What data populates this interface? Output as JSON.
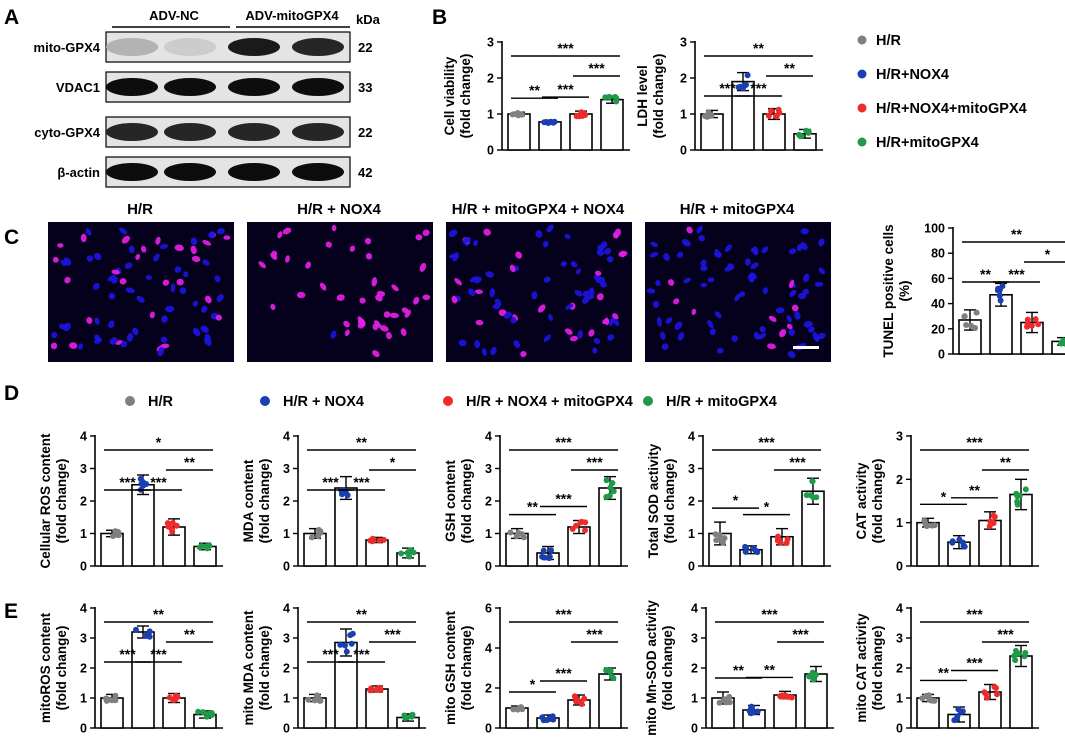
{
  "panel_labels": [
    "A",
    "B",
    "C",
    "D",
    "E"
  ],
  "panel_a": {
    "group_labels": [
      "ADV-NC",
      "ADV-mitoGPX4"
    ],
    "unit_label": "kDa",
    "rows": [
      {
        "name": "mito-GPX4",
        "kda": "22",
        "intensities": [
          0.3,
          0.2,
          0.9,
          0.85
        ]
      },
      {
        "name": "VDAC1",
        "kda": "33",
        "intensities": [
          0.95,
          0.95,
          0.95,
          0.95
        ]
      },
      {
        "name": "cyto-GPX4",
        "kda": "22",
        "intensities": [
          0.85,
          0.85,
          0.85,
          0.85
        ]
      },
      {
        "name": "β-actin",
        "kda": "42",
        "intensities": [
          0.95,
          0.95,
          0.95,
          0.95
        ]
      }
    ]
  },
  "legend_top": [
    "H/R",
    "H/R+NOX4",
    "H/R+NOX4+mitoGPX4",
    "H/R+mitoGPX4"
  ],
  "legend_mid": [
    "H/R",
    "H/R + NOX4",
    "H/R + NOX4 + mitoGPX4",
    "H/R + mitoGPX4"
  ],
  "image_titles": [
    "H/R",
    "H/R + NOX4",
    "H/R + mitoGPX4 + NOX4",
    "H/R + mitoGPX4"
  ],
  "colors": {
    "hr": "#808080",
    "nox4": "#1a3fb0",
    "nox4_mito": "#ee2b2b",
    "mito": "#1f9a4a",
    "nuclei_blue": "#1c14e0",
    "nuclei_pink": "#e61ee6",
    "image_bg": "#05001c"
  },
  "chart_data": [
    {
      "id": "cell-viability",
      "type": "bar",
      "ylabel": [
        "Cell viability",
        "(fold change)"
      ],
      "ylim": [
        0,
        3
      ],
      "yticks": [
        "0",
        "1",
        "2",
        "3"
      ],
      "values": [
        1.0,
        0.78,
        1.0,
        1.4
      ],
      "errors": [
        0.05,
        0.05,
        0.08,
        0.1
      ],
      "sig": [
        {
          "a": 0,
          "b": 3,
          "label": "***"
        },
        {
          "a": 2,
          "b": 3,
          "label": "***"
        },
        {
          "a": 1,
          "b": 2,
          "label": "***"
        },
        {
          "a": 0,
          "b": 1,
          "label": "**"
        }
      ]
    },
    {
      "id": "ldh-level",
      "type": "bar",
      "ylabel": [
        "LDH level",
        "(fold change)"
      ],
      "ylim": [
        0,
        3
      ],
      "yticks": [
        "0",
        "1",
        "2",
        "3"
      ],
      "values": [
        1.0,
        1.9,
        1.0,
        0.45
      ],
      "errors": [
        0.1,
        0.25,
        0.15,
        0.12
      ],
      "sig": [
        {
          "a": 0,
          "b": 3,
          "label": "**"
        },
        {
          "a": 0,
          "b": 1,
          "label": "***"
        },
        {
          "a": 1,
          "b": 2,
          "label": "***"
        },
        {
          "a": 2,
          "b": 3,
          "label": "**"
        }
      ]
    },
    {
      "id": "tunel-positive",
      "type": "bar",
      "ylabel": [
        "TUNEL positive cells",
        "(%)"
      ],
      "ylim": [
        0,
        100
      ],
      "yticks": [
        "0",
        "20",
        "40",
        "60",
        "80",
        "100"
      ],
      "values": [
        27,
        47,
        25,
        10
      ],
      "errors": [
        8,
        9,
        8,
        3
      ],
      "sig": [
        {
          "a": 0,
          "b": 3,
          "label": "**"
        },
        {
          "a": 0,
          "b": 1,
          "label": "**"
        },
        {
          "a": 1,
          "b": 2,
          "label": "***"
        },
        {
          "a": 2,
          "b": 3,
          "label": "*"
        }
      ]
    },
    {
      "id": "cellular-ros",
      "type": "bar",
      "ylabel": [
        "Cellular ROS content",
        "(fold change)"
      ],
      "ylim": [
        0,
        4
      ],
      "yticks": [
        "0",
        "1",
        "2",
        "3",
        "4"
      ],
      "values": [
        1.0,
        2.5,
        1.2,
        0.6
      ],
      "errors": [
        0.1,
        0.3,
        0.25,
        0.1
      ],
      "sig": [
        {
          "a": 0,
          "b": 3,
          "label": "*"
        },
        {
          "a": 0,
          "b": 1,
          "label": "***"
        },
        {
          "a": 1,
          "b": 2,
          "label": "***"
        },
        {
          "a": 2,
          "b": 3,
          "label": "**"
        }
      ]
    },
    {
      "id": "mda-content",
      "type": "bar",
      "ylabel": [
        "MDA content",
        "(fold change)"
      ],
      "ylim": [
        0,
        4
      ],
      "yticks": [
        "0",
        "1",
        "2",
        "3",
        "4"
      ],
      "values": [
        1.0,
        2.4,
        0.8,
        0.4
      ],
      "errors": [
        0.15,
        0.35,
        0.08,
        0.15
      ],
      "sig": [
        {
          "a": 0,
          "b": 3,
          "label": "**"
        },
        {
          "a": 0,
          "b": 1,
          "label": "***"
        },
        {
          "a": 1,
          "b": 2,
          "label": "***"
        },
        {
          "a": 2,
          "b": 3,
          "label": "*"
        }
      ]
    },
    {
      "id": "gsh-content",
      "type": "bar",
      "ylabel": [
        "GSH content",
        "(fold change)"
      ],
      "ylim": [
        0,
        4
      ],
      "yticks": [
        "0",
        "1",
        "2",
        "3",
        "4"
      ],
      "values": [
        1.0,
        0.4,
        1.2,
        2.4
      ],
      "errors": [
        0.15,
        0.2,
        0.2,
        0.35
      ],
      "sig": [
        {
          "a": 0,
          "b": 3,
          "label": "***"
        },
        {
          "a": 2,
          "b": 3,
          "label": "***"
        },
        {
          "a": 0,
          "b": 1,
          "label": "**"
        },
        {
          "a": 1,
          "b": 2,
          "label": "***"
        }
      ]
    },
    {
      "id": "total-sod",
      "type": "bar",
      "ylabel": [
        "Total SOD activity",
        "(fold change)"
      ],
      "ylim": [
        0,
        4
      ],
      "yticks": [
        "0",
        "1",
        "2",
        "3",
        "4"
      ],
      "values": [
        1.0,
        0.5,
        0.9,
        2.3
      ],
      "errors": [
        0.35,
        0.12,
        0.25,
        0.4
      ],
      "sig": [
        {
          "a": 0,
          "b": 3,
          "label": "***"
        },
        {
          "a": 2,
          "b": 3,
          "label": "***"
        },
        {
          "a": 0,
          "b": 1,
          "label": "*"
        },
        {
          "a": 1,
          "b": 2,
          "label": "*"
        }
      ]
    },
    {
      "id": "cat-activity",
      "type": "bar",
      "ylabel": [
        "CAT activity",
        "(fold change)"
      ],
      "ylim": [
        0,
        3
      ],
      "yticks": [
        "0",
        "1",
        "2",
        "3"
      ],
      "values": [
        1.0,
        0.55,
        1.05,
        1.65
      ],
      "errors": [
        0.1,
        0.15,
        0.2,
        0.35
      ],
      "sig": [
        {
          "a": 0,
          "b": 3,
          "label": "***"
        },
        {
          "a": 2,
          "b": 3,
          "label": "**"
        },
        {
          "a": 0,
          "b": 1,
          "label": "*"
        },
        {
          "a": 1,
          "b": 2,
          "label": "**"
        }
      ]
    },
    {
      "id": "mito-ros",
      "type": "bar",
      "ylabel": [
        "mitoROS content",
        "(fold change)"
      ],
      "ylim": [
        0,
        4
      ],
      "yticks": [
        "0",
        "1",
        "2",
        "3",
        "4"
      ],
      "values": [
        1.0,
        3.2,
        1.0,
        0.45
      ],
      "errors": [
        0.12,
        0.2,
        0.15,
        0.12
      ],
      "sig": [
        {
          "a": 0,
          "b": 3,
          "label": "**"
        },
        {
          "a": 0,
          "b": 1,
          "label": "***"
        },
        {
          "a": 1,
          "b": 2,
          "label": "***"
        },
        {
          "a": 2,
          "b": 3,
          "label": "**"
        }
      ]
    },
    {
      "id": "mito-mda",
      "type": "bar",
      "ylabel": [
        "mito MDA content",
        "(fold change)"
      ],
      "ylim": [
        0,
        4
      ],
      "yticks": [
        "0",
        "1",
        "2",
        "3",
        "4"
      ],
      "values": [
        1.0,
        2.85,
        1.3,
        0.35
      ],
      "errors": [
        0.12,
        0.45,
        0.1,
        0.12
      ],
      "sig": [
        {
          "a": 0,
          "b": 3,
          "label": "**"
        },
        {
          "a": 0,
          "b": 1,
          "label": "***"
        },
        {
          "a": 1,
          "b": 2,
          "label": "***"
        },
        {
          "a": 2,
          "b": 3,
          "label": "***"
        }
      ]
    },
    {
      "id": "mito-gsh",
      "type": "bar",
      "ylabel": [
        "mito GSH content",
        "(fold change)"
      ],
      "ylim": [
        0,
        6
      ],
      "yticks": [
        "0",
        "2",
        "4",
        "6"
      ],
      "values": [
        1.0,
        0.5,
        1.4,
        2.7
      ],
      "errors": [
        0.1,
        0.15,
        0.25,
        0.3
      ],
      "sig": [
        {
          "a": 0,
          "b": 3,
          "label": "***"
        },
        {
          "a": 2,
          "b": 3,
          "label": "***"
        },
        {
          "a": 0,
          "b": 1,
          "label": "*"
        },
        {
          "a": 1,
          "b": 2,
          "label": "***"
        }
      ]
    },
    {
      "id": "mito-mn-sod",
      "type": "bar",
      "ylabel": [
        "mito Mn-SOD activity",
        "(fold change)"
      ],
      "ylim": [
        0,
        4
      ],
      "yticks": [
        "0",
        "1",
        "2",
        "3",
        "4"
      ],
      "values": [
        1.0,
        0.6,
        1.1,
        1.8
      ],
      "errors": [
        0.2,
        0.15,
        0.12,
        0.25
      ],
      "sig": [
        {
          "a": 0,
          "b": 3,
          "label": "***"
        },
        {
          "a": 2,
          "b": 3,
          "label": "***"
        },
        {
          "a": 0,
          "b": 1,
          "label": "**"
        },
        {
          "a": 1,
          "b": 2,
          "label": "**"
        }
      ]
    },
    {
      "id": "mito-cat",
      "type": "bar",
      "ylabel": [
        "mito CAT activity",
        "(fold change)"
      ],
      "ylim": [
        0,
        4
      ],
      "yticks": [
        "0",
        "1",
        "2",
        "3",
        "4"
      ],
      "values": [
        1.0,
        0.45,
        1.2,
        2.4
      ],
      "errors": [
        0.12,
        0.25,
        0.25,
        0.35
      ],
      "sig": [
        {
          "a": 0,
          "b": 3,
          "label": "***"
        },
        {
          "a": 2,
          "b": 3,
          "label": "***"
        },
        {
          "a": 0,
          "b": 1,
          "label": "**"
        },
        {
          "a": 1,
          "b": 2,
          "label": "***"
        }
      ]
    }
  ]
}
